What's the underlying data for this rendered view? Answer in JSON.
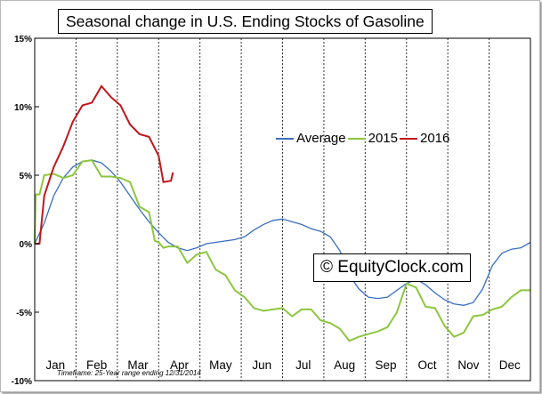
{
  "chart_data": {
    "type": "line",
    "title": "Seasonal change in U.S. Ending Stocks of Gasoline",
    "xlabel": "",
    "ylabel": "",
    "ylim": [
      -10,
      15
    ],
    "ytick_labels": [
      "15%",
      "10%",
      "5%",
      "0%",
      "-5%",
      "-10%"
    ],
    "months": [
      "Jan",
      "Feb",
      "Mar",
      "Apr",
      "May",
      "Jun",
      "Jul",
      "Aug",
      "Sep",
      "Oct",
      "Nov",
      "Dec"
    ],
    "x_unit": "week of year (1-52)",
    "grid": "vertical dashed lines at month boundaries",
    "legend_position": "upper-middle",
    "series": [
      {
        "name": "Average",
        "color": "#3a6fbd",
        "points": [
          [
            0,
            0
          ],
          [
            1,
            1.5
          ],
          [
            2,
            3.5
          ],
          [
            3,
            4.8
          ],
          [
            4,
            5.6
          ],
          [
            5,
            6
          ],
          [
            6,
            6.1
          ],
          [
            7,
            5.9
          ],
          [
            8,
            5.3
          ],
          [
            9,
            4.5
          ],
          [
            10,
            3.5
          ],
          [
            11,
            2.5
          ],
          [
            12,
            1.6
          ],
          [
            13,
            0.8
          ],
          [
            14,
            0.1
          ],
          [
            15,
            -0.3
          ],
          [
            16,
            -0.5
          ],
          [
            17,
            -0.3
          ],
          [
            18,
            0
          ],
          [
            19,
            0.1
          ],
          [
            20,
            0.2
          ],
          [
            21,
            0.3
          ],
          [
            22,
            0.5
          ],
          [
            23,
            1
          ],
          [
            24,
            1.4
          ],
          [
            25,
            1.7
          ],
          [
            26,
            1.8
          ],
          [
            27,
            1.6
          ],
          [
            28,
            1.4
          ],
          [
            29,
            1.1
          ],
          [
            30,
            0.9
          ],
          [
            31,
            0.5
          ],
          [
            32,
            -0.5
          ],
          [
            33,
            -2.3
          ],
          [
            34,
            -3.3
          ],
          [
            35,
            -3.9
          ],
          [
            36,
            -4
          ],
          [
            37,
            -3.9
          ],
          [
            38,
            -3.4
          ],
          [
            39,
            -2.9
          ],
          [
            40,
            -2.6
          ],
          [
            41,
            -3
          ],
          [
            42,
            -3.6
          ],
          [
            43,
            -4.1
          ],
          [
            44,
            -4.4
          ],
          [
            45,
            -4.5
          ],
          [
            46,
            -4.3
          ],
          [
            47,
            -3.3
          ],
          [
            48,
            -1.6
          ],
          [
            49,
            -0.7
          ],
          [
            50,
            -0.4
          ],
          [
            51,
            -0.3
          ],
          [
            52,
            0.1
          ]
        ]
      },
      {
        "name": "2015",
        "color": "#8dc63f",
        "points": [
          [
            0,
            0
          ],
          [
            0.1,
            3.6
          ],
          [
            0.5,
            3.6
          ],
          [
            1,
            5
          ],
          [
            2,
            5.1
          ],
          [
            3,
            4.8
          ],
          [
            4,
            5
          ],
          [
            5,
            6
          ],
          [
            6,
            6.1
          ],
          [
            7,
            4.9
          ],
          [
            8,
            4.9
          ],
          [
            9,
            4.8
          ],
          [
            10,
            4.5
          ],
          [
            11,
            2.7
          ],
          [
            12,
            2.3
          ],
          [
            12.6,
            0.2
          ],
          [
            13,
            0.1
          ],
          [
            13.5,
            -0.3
          ],
          [
            14,
            -0.2
          ],
          [
            15,
            -0.2
          ],
          [
            16,
            -1.4
          ],
          [
            17,
            -0.8
          ],
          [
            18,
            -0.6
          ],
          [
            19,
            -1.9
          ],
          [
            20,
            -2.3
          ],
          [
            21,
            -3.4
          ],
          [
            22,
            -3.9
          ],
          [
            23,
            -4.7
          ],
          [
            24,
            -4.9
          ],
          [
            25,
            -4.8
          ],
          [
            26,
            -4.7
          ],
          [
            27,
            -5.3
          ],
          [
            28,
            -4.8
          ],
          [
            29,
            -4.8
          ],
          [
            30,
            -5.6
          ],
          [
            31,
            -5.8
          ],
          [
            32,
            -6.2
          ],
          [
            33,
            -7.1
          ],
          [
            34,
            -6.8
          ],
          [
            35,
            -6.6
          ],
          [
            36,
            -6.4
          ],
          [
            37,
            -6.1
          ],
          [
            38,
            -5
          ],
          [
            39,
            -2.9
          ],
          [
            40,
            -3.2
          ],
          [
            41,
            -4.6
          ],
          [
            42,
            -4.7
          ],
          [
            43,
            -6
          ],
          [
            44,
            -6.8
          ],
          [
            45,
            -6.5
          ],
          [
            46,
            -5.3
          ],
          [
            47,
            -5.2
          ],
          [
            48,
            -4.8
          ],
          [
            49,
            -4.6
          ],
          [
            50,
            -3.9
          ],
          [
            51,
            -3.4
          ],
          [
            52,
            -3.4
          ]
        ]
      },
      {
        "name": "2016",
        "color": "#c0171d",
        "points": [
          [
            0,
            0
          ],
          [
            0.5,
            0
          ],
          [
            1,
            3.5
          ],
          [
            2,
            5.6
          ],
          [
            3,
            7.1
          ],
          [
            4,
            8.9
          ],
          [
            5,
            10.1
          ],
          [
            6,
            10.3
          ],
          [
            7,
            11.5
          ],
          [
            8,
            10.7
          ],
          [
            9,
            10.1
          ],
          [
            10,
            8.7
          ],
          [
            11,
            8
          ],
          [
            12,
            7.8
          ],
          [
            13,
            6.4
          ],
          [
            13.5,
            4.5
          ],
          [
            14.3,
            4.6
          ],
          [
            14.5,
            5.2
          ]
        ]
      }
    ]
  },
  "title": "Seasonal change in U.S. Ending Stocks of Gasoline",
  "watermark": "© EquityClock.com",
  "footnote": "Timeframe: 25-Year range ending 12/31/2014"
}
